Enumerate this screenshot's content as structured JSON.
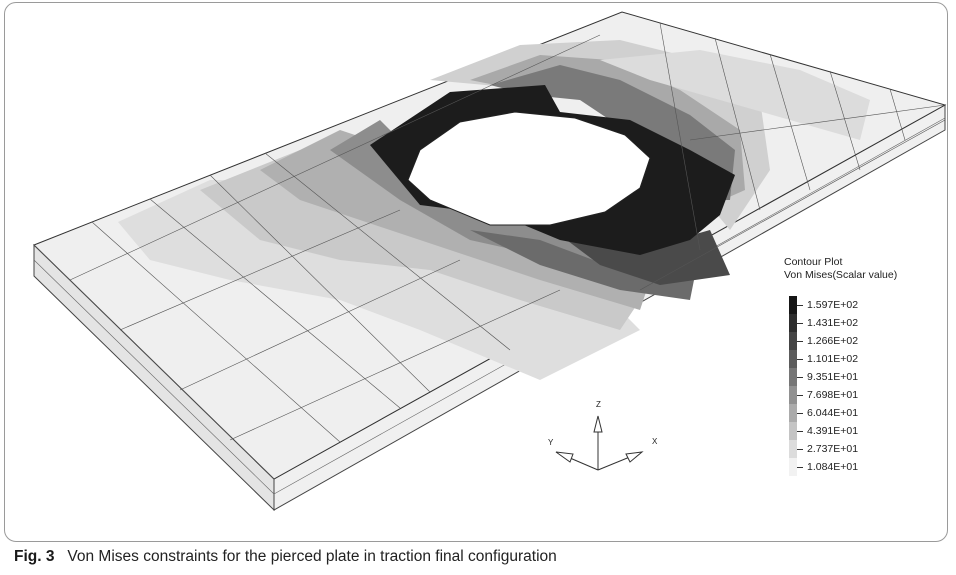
{
  "legend": {
    "title_line1": "Contour Plot",
    "title_line2": "Von Mises(Scalar value)",
    "levels": [
      {
        "value": "1.597E+02",
        "color": "#161616"
      },
      {
        "value": "1.431E+02",
        "color": "#2d2d2d"
      },
      {
        "value": "1.266E+02",
        "color": "#444444"
      },
      {
        "value": "1.101E+02",
        "color": "#5c5c5c"
      },
      {
        "value": "9.351E+01",
        "color": "#767676"
      },
      {
        "value": "7.698E+01",
        "color": "#919191"
      },
      {
        "value": "6.044E+01",
        "color": "#ababab"
      },
      {
        "value": "4.391E+01",
        "color": "#c4c4c4"
      },
      {
        "value": "2.737E+01",
        "color": "#dcdcdc"
      },
      {
        "value": "1.084E+01",
        "color": "#f2f2f2"
      }
    ]
  },
  "axes": {
    "z": "Z",
    "y": "Y",
    "x": "X"
  },
  "caption": {
    "label": "Fig. 3",
    "text": "Von Mises constraints for the pierced plate in traction final configuration"
  }
}
